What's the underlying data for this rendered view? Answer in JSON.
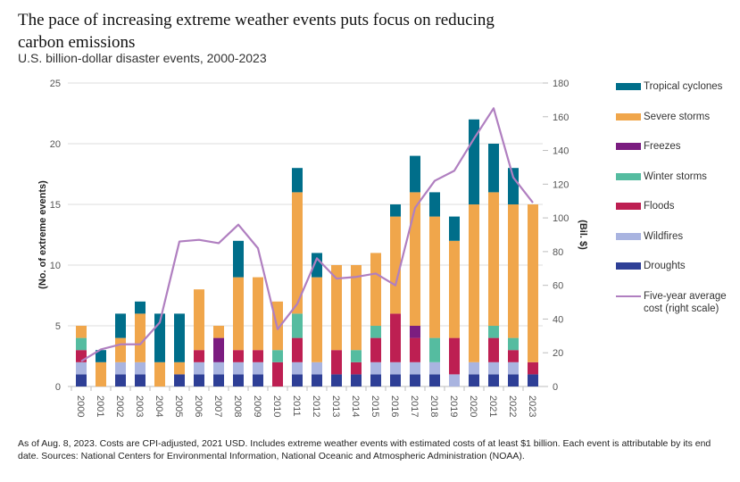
{
  "header": {
    "title": "The pace of increasing extreme weather events puts focus on reducing carbon emissions",
    "subtitle": "U.S. billion-dollar disaster events, 2000-2023"
  },
  "footnote": "As of Aug. 8, 2023. Costs are CPI-adjusted, 2021 USD. Includes extreme weather events with estimated costs of at least $1 billion. Each event is attributable by its end date. Sources: National Centers for Environmental Information, National Oceanic and Atmospheric Administration (NOAA).",
  "chart_data": {
    "type": "bar",
    "stacked": true,
    "title": "The pace of increasing extreme weather events puts focus on reducing carbon emissions",
    "subtitle": "U.S. billion-dollar disaster events, 2000-2023",
    "xlabel": "",
    "ylabel": "(No. of extreme events)",
    "y2label": "(Bil. $)",
    "ylim": [
      0,
      25
    ],
    "y2lim": [
      0,
      180
    ],
    "yticks": [
      0,
      5,
      10,
      15,
      20,
      25
    ],
    "y2ticks": [
      0,
      20,
      40,
      60,
      80,
      100,
      120,
      140,
      160,
      180
    ],
    "grid": true,
    "legend_position": "right",
    "categories": [
      "2000",
      "2001",
      "2002",
      "2003",
      "2004",
      "2005",
      "2006",
      "2007",
      "2008",
      "2009",
      "2010",
      "2011",
      "2012",
      "2013",
      "2014",
      "2015",
      "2016",
      "2017",
      "2018",
      "2019",
      "2020",
      "2021",
      "2022",
      "2023"
    ],
    "series": [
      {
        "name": "Droughts",
        "color": "#2e3f96",
        "values": [
          1,
          0,
          1,
          1,
          0,
          1,
          1,
          1,
          1,
          1,
          0,
          1,
          1,
          1,
          1,
          1,
          1,
          1,
          1,
          0,
          1,
          1,
          1,
          1
        ]
      },
      {
        "name": "Wildfires",
        "color": "#a9b4e0",
        "values": [
          1,
          0,
          1,
          1,
          0,
          0,
          1,
          1,
          1,
          1,
          0,
          1,
          1,
          0,
          0,
          1,
          1,
          1,
          1,
          1,
          1,
          1,
          1,
          0
        ]
      },
      {
        "name": "Floods",
        "color": "#bd1f52",
        "values": [
          1,
          0,
          0,
          0,
          0,
          0,
          1,
          0,
          1,
          1,
          2,
          2,
          0,
          2,
          1,
          2,
          4,
          2,
          0,
          3,
          0,
          2,
          1,
          1
        ]
      },
      {
        "name": "Freezes",
        "color": "#7b1d80",
        "values": [
          0,
          0,
          0,
          0,
          0,
          0,
          0,
          2,
          0,
          0,
          0,
          0,
          0,
          0,
          0,
          0,
          0,
          1,
          0,
          0,
          0,
          0,
          0,
          0
        ]
      },
      {
        "name": "Winter storms",
        "color": "#55bca0",
        "values": [
          1,
          0,
          0,
          0,
          0,
          0,
          0,
          0,
          0,
          0,
          1,
          2,
          0,
          0,
          1,
          1,
          0,
          0,
          2,
          0,
          0,
          1,
          1,
          0
        ]
      },
      {
        "name": "Severe storms",
        "color": "#f0a64b",
        "values": [
          1,
          2,
          2,
          4,
          2,
          1,
          5,
          1,
          6,
          6,
          4,
          10,
          7,
          7,
          7,
          6,
          8,
          11,
          10,
          8,
          13,
          11,
          11,
          13
        ]
      },
      {
        "name": "Tropical cyclones",
        "color": "#006e8a",
        "values": [
          0,
          1,
          2,
          1,
          4,
          4,
          0,
          0,
          3,
          0,
          0,
          2,
          2,
          0,
          0,
          0,
          1,
          3,
          2,
          2,
          7,
          4,
          3,
          0
        ]
      }
    ],
    "line_series": {
      "name": "Five-year average cost (right scale)",
      "axis": "right",
      "color": "#b07fc0",
      "values": [
        15,
        22,
        25,
        25,
        38,
        86,
        87,
        85,
        96,
        82,
        34,
        49,
        76,
        64,
        65,
        67,
        60,
        106,
        122,
        128,
        147,
        165,
        124,
        109
      ]
    },
    "legend": [
      {
        "label": "Tropical cyclones",
        "color": "#006e8a",
        "kind": "bar"
      },
      {
        "label": "Severe storms",
        "color": "#f0a64b",
        "kind": "bar"
      },
      {
        "label": "Freezes",
        "color": "#7b1d80",
        "kind": "bar"
      },
      {
        "label": "Winter storms",
        "color": "#55bca0",
        "kind": "bar"
      },
      {
        "label": "Floods",
        "color": "#bd1f52",
        "kind": "bar"
      },
      {
        "label": "Wildfires",
        "color": "#a9b4e0",
        "kind": "bar"
      },
      {
        "label": "Droughts",
        "color": "#2e3f96",
        "kind": "bar"
      },
      {
        "label": "Five-year average cost (right scale)",
        "color": "#b07fc0",
        "kind": "line"
      }
    ]
  }
}
